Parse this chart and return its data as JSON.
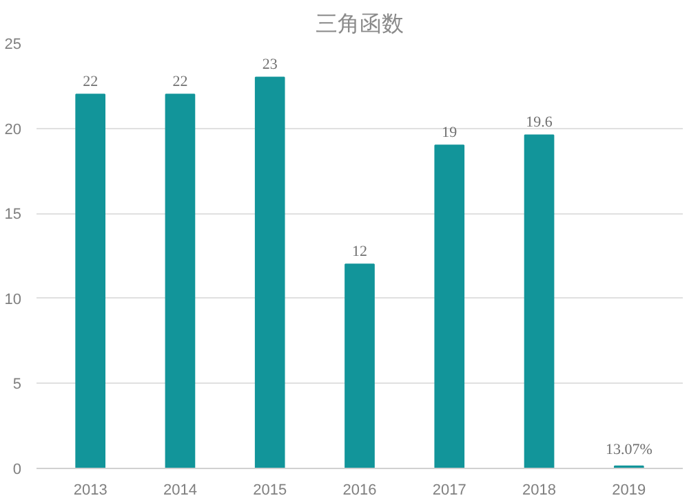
{
  "chart_data": {
    "type": "bar",
    "title": "三角函数",
    "categories": [
      "2013",
      "2014",
      "2015",
      "2016",
      "2017",
      "2018",
      "2019"
    ],
    "values": [
      22,
      22,
      23,
      12,
      19,
      19.6,
      0.1307
    ],
    "value_labels": [
      "22",
      "22",
      "23",
      "12",
      "19",
      "19.6",
      "13.07%"
    ],
    "color": "#12959a",
    "ylim": [
      0,
      25
    ],
    "yticks": [
      0,
      5,
      10,
      15,
      20,
      25
    ],
    "grid": "y"
  }
}
